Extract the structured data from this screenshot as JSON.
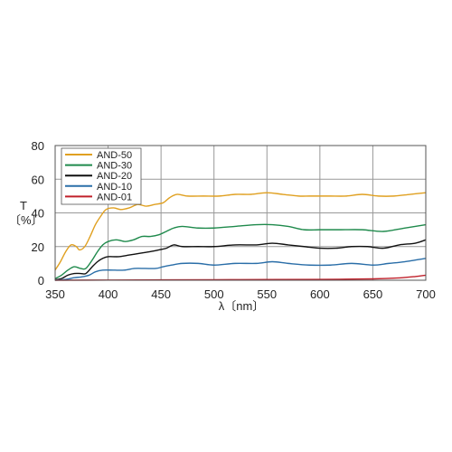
{
  "chart_data": {
    "type": "line",
    "xlabel": "λ〔nm〕",
    "ylabel_top": "T",
    "ylabel_bottom": "〔%〕",
    "xlim": [
      350,
      700
    ],
    "ylim": [
      0,
      80
    ],
    "x_ticks": [
      350,
      400,
      450,
      500,
      550,
      600,
      650,
      700
    ],
    "y_ticks": [
      0,
      20,
      40,
      60,
      80
    ],
    "grid": true,
    "legend_position": "top-left",
    "series": [
      {
        "name": "AND-50",
        "color": "#e0a020",
        "points": [
          [
            350,
            6
          ],
          [
            355,
            11
          ],
          [
            360,
            17
          ],
          [
            365,
            21
          ],
          [
            370,
            20
          ],
          [
            373,
            18
          ],
          [
            378,
            20
          ],
          [
            383,
            26
          ],
          [
            388,
            33
          ],
          [
            393,
            38
          ],
          [
            398,
            42
          ],
          [
            405,
            43
          ],
          [
            412,
            42
          ],
          [
            420,
            43
          ],
          [
            428,
            45
          ],
          [
            436,
            44
          ],
          [
            444,
            45
          ],
          [
            452,
            46
          ],
          [
            458,
            49
          ],
          [
            465,
            51
          ],
          [
            475,
            50
          ],
          [
            490,
            50
          ],
          [
            505,
            50
          ],
          [
            520,
            51
          ],
          [
            535,
            51
          ],
          [
            550,
            52
          ],
          [
            565,
            51
          ],
          [
            580,
            50
          ],
          [
            590,
            50
          ],
          [
            600,
            50
          ],
          [
            610,
            50
          ],
          [
            625,
            50
          ],
          [
            640,
            51
          ],
          [
            655,
            50
          ],
          [
            670,
            50
          ],
          [
            685,
            51
          ],
          [
            700,
            52
          ]
        ]
      },
      {
        "name": "AND-30",
        "color": "#1f8a4c",
        "points": [
          [
            350,
            1
          ],
          [
            356,
            3
          ],
          [
            362,
            6
          ],
          [
            368,
            8
          ],
          [
            374,
            7
          ],
          [
            379,
            7
          ],
          [
            385,
            12
          ],
          [
            390,
            17
          ],
          [
            395,
            21
          ],
          [
            400,
            23
          ],
          [
            408,
            24
          ],
          [
            416,
            23
          ],
          [
            424,
            24
          ],
          [
            432,
            26
          ],
          [
            440,
            26
          ],
          [
            448,
            27
          ],
          [
            455,
            29
          ],
          [
            462,
            31
          ],
          [
            470,
            32
          ],
          [
            485,
            31
          ],
          [
            500,
            31
          ],
          [
            520,
            32
          ],
          [
            540,
            33
          ],
          [
            555,
            33
          ],
          [
            570,
            32
          ],
          [
            585,
            30
          ],
          [
            600,
            30
          ],
          [
            620,
            30
          ],
          [
            640,
            30
          ],
          [
            660,
            29
          ],
          [
            680,
            31
          ],
          [
            700,
            33
          ]
        ]
      },
      {
        "name": "AND-20",
        "color": "#111111",
        "points": [
          [
            350,
            0.3
          ],
          [
            356,
            1
          ],
          [
            362,
            3
          ],
          [
            368,
            4
          ],
          [
            374,
            4
          ],
          [
            379,
            4
          ],
          [
            385,
            8
          ],
          [
            390,
            11
          ],
          [
            395,
            13
          ],
          [
            400,
            14
          ],
          [
            410,
            14
          ],
          [
            420,
            15
          ],
          [
            430,
            16
          ],
          [
            440,
            17
          ],
          [
            448,
            18
          ],
          [
            455,
            19
          ],
          [
            462,
            21
          ],
          [
            470,
            20
          ],
          [
            485,
            20
          ],
          [
            500,
            20
          ],
          [
            520,
            21
          ],
          [
            540,
            21
          ],
          [
            555,
            22
          ],
          [
            570,
            21
          ],
          [
            585,
            20
          ],
          [
            600,
            19
          ],
          [
            615,
            19
          ],
          [
            630,
            20
          ],
          [
            645,
            20
          ],
          [
            660,
            19
          ],
          [
            675,
            21
          ],
          [
            690,
            22
          ],
          [
            700,
            24
          ]
        ]
      },
      {
        "name": "AND-10",
        "color": "#2a6ea8",
        "points": [
          [
            350,
            0
          ],
          [
            360,
            0.5
          ],
          [
            368,
            1.5
          ],
          [
            375,
            2
          ],
          [
            382,
            3
          ],
          [
            388,
            5
          ],
          [
            395,
            6
          ],
          [
            405,
            6
          ],
          [
            415,
            6
          ],
          [
            425,
            7
          ],
          [
            435,
            7
          ],
          [
            445,
            7
          ],
          [
            452,
            8
          ],
          [
            460,
            9
          ],
          [
            470,
            10
          ],
          [
            485,
            10
          ],
          [
            500,
            9
          ],
          [
            520,
            10
          ],
          [
            540,
            10
          ],
          [
            555,
            11
          ],
          [
            570,
            10
          ],
          [
            590,
            9
          ],
          [
            610,
            9
          ],
          [
            630,
            10
          ],
          [
            650,
            9
          ],
          [
            665,
            10
          ],
          [
            680,
            11
          ],
          [
            700,
            13
          ]
        ]
      },
      {
        "name": "AND-01",
        "color": "#c0202a",
        "points": [
          [
            350,
            0
          ],
          [
            400,
            0.1
          ],
          [
            450,
            0.2
          ],
          [
            500,
            0.3
          ],
          [
            550,
            0.4
          ],
          [
            600,
            0.5
          ],
          [
            650,
            0.8
          ],
          [
            675,
            1.4
          ],
          [
            690,
            2.2
          ],
          [
            700,
            3
          ]
        ]
      }
    ]
  }
}
